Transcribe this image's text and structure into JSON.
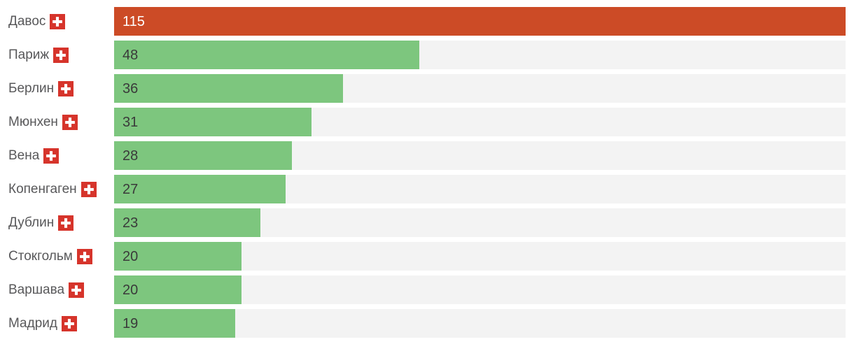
{
  "chart_data": {
    "type": "bar",
    "orientation": "horizontal",
    "title": "",
    "xlabel": "",
    "ylabel": "",
    "xlim": [
      0,
      115
    ],
    "grid": false,
    "legend": false,
    "categories": [
      "Давос",
      "Париж",
      "Берлин",
      "Мюнхен",
      "Вена",
      "Копенгаген",
      "Дублин",
      "Стокгольм",
      "Варшава",
      "Мадрид"
    ],
    "values": [
      115,
      48,
      36,
      31,
      28,
      27,
      23,
      20,
      20,
      19
    ],
    "max_value": 115,
    "rows": [
      {
        "label": "Давос",
        "value": 115,
        "flag": "switzerland-flag",
        "highlight": true
      },
      {
        "label": "Париж",
        "value": 48,
        "flag": null,
        "highlight": false
      },
      {
        "label": "Берлин",
        "value": 36,
        "flag": null,
        "highlight": false
      },
      {
        "label": "Мюнхен",
        "value": 31,
        "flag": null,
        "highlight": false
      },
      {
        "label": "Вена",
        "value": 28,
        "flag": null,
        "highlight": false
      },
      {
        "label": "Копенгаген",
        "value": 27,
        "flag": null,
        "highlight": false
      },
      {
        "label": "Дублин",
        "value": 23,
        "flag": null,
        "highlight": false
      },
      {
        "label": "Стокгольм",
        "value": 20,
        "flag": null,
        "highlight": false
      },
      {
        "label": "Варшава",
        "value": 20,
        "flag": null,
        "highlight": false
      },
      {
        "label": "Мадрид",
        "value": 19,
        "flag": null,
        "highlight": false
      }
    ],
    "colors": {
      "bar": "#7dc67e",
      "bar_highlight": "#cc4b26",
      "track": "#f3f3f3",
      "label_text": "#58585a",
      "value_text": "#3a3a3a",
      "value_text_highlight": "#ffffff",
      "flag_red": "#d6342b",
      "flag_cross": "#ffffff",
      "background": "#ffffff"
    }
  }
}
